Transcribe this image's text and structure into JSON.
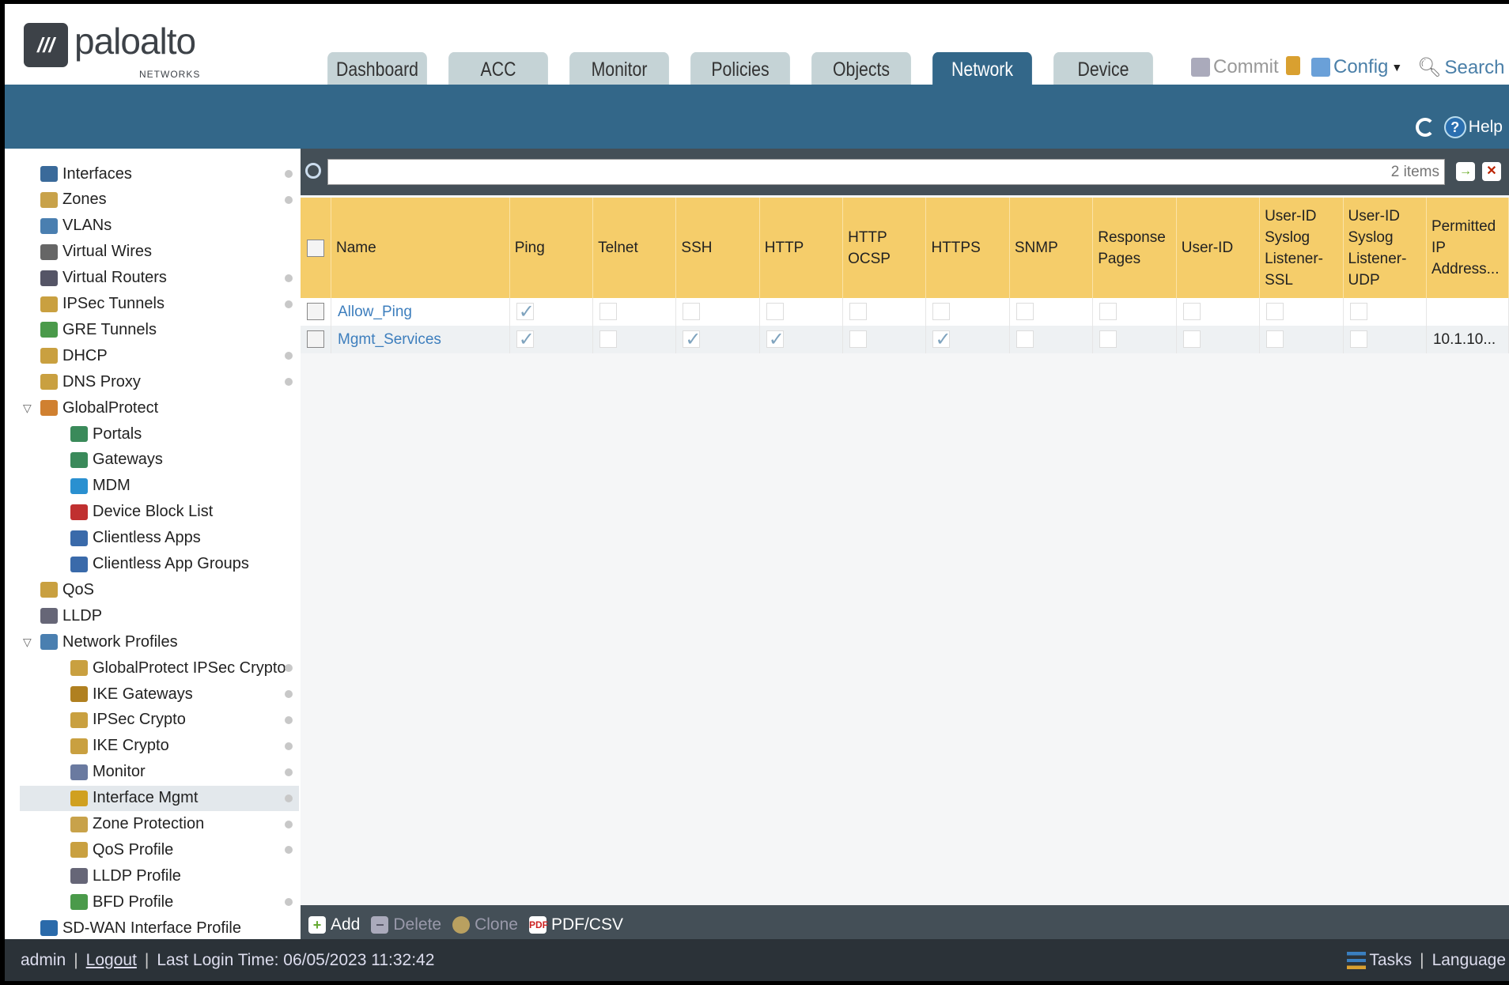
{
  "header": {
    "logo_text": "paloalto",
    "logo_sub": "NETWORKS",
    "tabs": [
      {
        "label": "Dashboard"
      },
      {
        "label": "ACC"
      },
      {
        "label": "Monitor"
      },
      {
        "label": "Policies"
      },
      {
        "label": "Objects"
      },
      {
        "label": "Network",
        "active": true
      },
      {
        "label": "Device"
      }
    ],
    "actions": {
      "commit": "Commit",
      "config": "Config",
      "search": "Search"
    },
    "help": "Help"
  },
  "sidebar": {
    "items": [
      {
        "label": "Interfaces",
        "level": 0,
        "dot": true,
        "color": "#3a6a9a"
      },
      {
        "label": "Zones",
        "level": 0,
        "dot": true,
        "color": "#c8a24a"
      },
      {
        "label": "VLANs",
        "level": 0,
        "dot": false,
        "color": "#4a7fb0"
      },
      {
        "label": "Virtual Wires",
        "level": 0,
        "dot": false,
        "color": "#666"
      },
      {
        "label": "Virtual Routers",
        "level": 0,
        "dot": true,
        "color": "#556"
      },
      {
        "label": "IPSec Tunnels",
        "level": 0,
        "dot": true,
        "color": "#c9a040"
      },
      {
        "label": "GRE Tunnels",
        "level": 0,
        "dot": false,
        "color": "#4a9a4a"
      },
      {
        "label": "DHCP",
        "level": 0,
        "dot": true,
        "color": "#c9a040"
      },
      {
        "label": "DNS Proxy",
        "level": 0,
        "dot": true,
        "color": "#c9a040"
      },
      {
        "label": "GlobalProtect",
        "level": 0,
        "dot": false,
        "expanded": true,
        "color": "#d08030"
      },
      {
        "label": "Portals",
        "level": 1,
        "dot": false,
        "color": "#3a8a5a"
      },
      {
        "label": "Gateways",
        "level": 1,
        "dot": false,
        "color": "#3a8a5a"
      },
      {
        "label": "MDM",
        "level": 1,
        "dot": false,
        "color": "#2a90d0"
      },
      {
        "label": "Device Block List",
        "level": 1,
        "dot": false,
        "color": "#c03030"
      },
      {
        "label": "Clientless Apps",
        "level": 1,
        "dot": false,
        "color": "#3a6aaa"
      },
      {
        "label": "Clientless App Groups",
        "level": 1,
        "dot": false,
        "color": "#3a6aaa"
      },
      {
        "label": "QoS",
        "level": 0,
        "dot": false,
        "color": "#c9a040"
      },
      {
        "label": "LLDP",
        "level": 0,
        "dot": false,
        "color": "#667"
      },
      {
        "label": "Network Profiles",
        "level": 0,
        "dot": false,
        "expanded": true,
        "color": "#4a7fb0"
      },
      {
        "label": "GlobalProtect IPSec Crypto",
        "level": 1,
        "dot": true,
        "color": "#c9a040"
      },
      {
        "label": "IKE Gateways",
        "level": 1,
        "dot": true,
        "color": "#b08020"
      },
      {
        "label": "IPSec Crypto",
        "level": 1,
        "dot": true,
        "color": "#c9a040"
      },
      {
        "label": "IKE Crypto",
        "level": 1,
        "dot": true,
        "color": "#c9a040"
      },
      {
        "label": "Monitor",
        "level": 1,
        "dot": true,
        "color": "#6a7aa0"
      },
      {
        "label": "Interface Mgmt",
        "level": 1,
        "dot": true,
        "selected": true,
        "color": "#d0a020"
      },
      {
        "label": "Zone Protection",
        "level": 1,
        "dot": true,
        "color": "#c8a24a"
      },
      {
        "label": "QoS Profile",
        "level": 1,
        "dot": true,
        "color": "#c9a040"
      },
      {
        "label": "LLDP Profile",
        "level": 1,
        "dot": false,
        "color": "#667"
      },
      {
        "label": "BFD Profile",
        "level": 1,
        "dot": true,
        "color": "#4a9a4a"
      },
      {
        "label": "SD-WAN Interface Profile",
        "level": 0,
        "dot": false,
        "color": "#2a6aaa"
      }
    ]
  },
  "main": {
    "search": {
      "placeholder": "",
      "count": "2 items"
    },
    "columns": [
      "Name",
      "Ping",
      "Telnet",
      "SSH",
      "HTTP",
      "HTTP OCSP",
      "HTTPS",
      "SNMP",
      "Response Pages",
      "User-ID",
      "User-ID Syslog Listener-SSL",
      "User-ID Syslog Listener-UDP",
      "Permitted IP Address..."
    ],
    "rows": [
      {
        "name": "Allow_Ping",
        "checks": [
          true,
          false,
          false,
          false,
          false,
          false,
          false,
          false,
          false,
          false,
          false
        ],
        "permitted": ""
      },
      {
        "name": "Mgmt_Services",
        "checks": [
          true,
          false,
          true,
          true,
          false,
          true,
          false,
          false,
          false,
          false,
          false
        ],
        "permitted": "10.1.10..."
      }
    ],
    "toolbar": {
      "add": "Add",
      "delete": "Delete",
      "clone": "Clone",
      "pdf": "PDF/CSV"
    }
  },
  "footer": {
    "user": "admin",
    "logout": "Logout",
    "last_login": "Last Login Time: 06/05/2023 11:32:42",
    "tasks": "Tasks",
    "language": "Language"
  },
  "colors": {
    "accent": "#336789",
    "header_yellow": "#f5cd6a",
    "link": "#3d7ebd"
  }
}
